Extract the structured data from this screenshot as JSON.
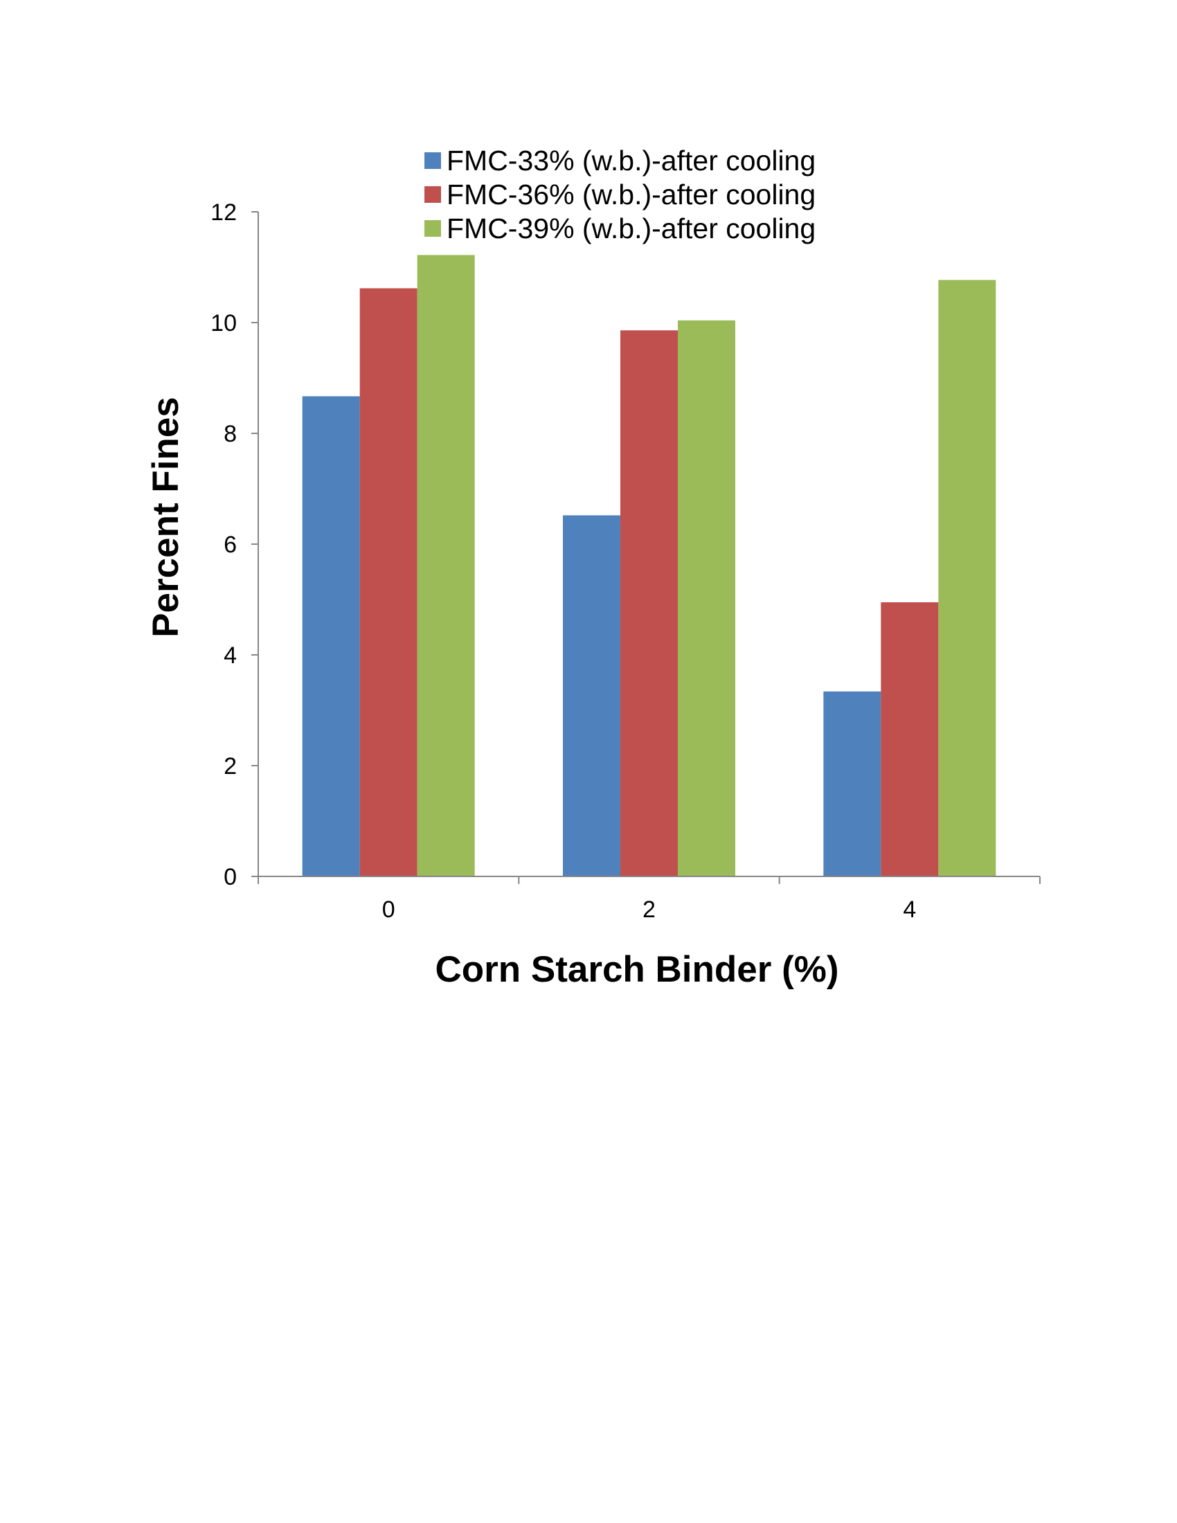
{
  "chart_data": {
    "type": "bar",
    "title": "",
    "xlabel": "Corn Starch Binder (%)",
    "ylabel": "Percent  Fines",
    "categories": [
      "0",
      "2",
      "4"
    ],
    "series": [
      {
        "name": "FMC-33% (w.b.)-after cooling",
        "color": "#4F81BD",
        "values": [
          8.67,
          6.52,
          3.34
        ]
      },
      {
        "name": "FMC-36% (w.b.)-after cooling",
        "color": "#C0504D",
        "values": [
          10.62,
          9.86,
          4.95
        ]
      },
      {
        "name": "FMC-39% (w.b.)-after cooling",
        "color": "#9BBB59",
        "values": [
          11.22,
          10.04,
          10.77
        ]
      }
    ],
    "ylim": [
      0,
      12
    ],
    "yticks": [
      0,
      2,
      4,
      6,
      8,
      10,
      12
    ],
    "legend_position": "top-right",
    "grid": false
  }
}
